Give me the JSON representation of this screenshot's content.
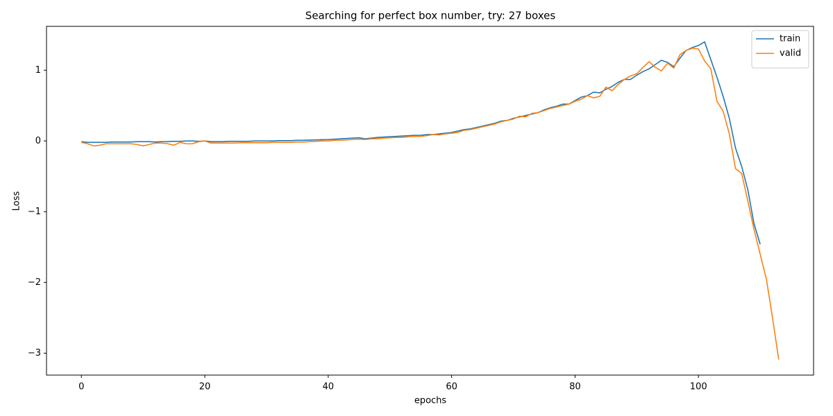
{
  "chart_data": {
    "type": "line",
    "title": "Searching for perfect box number, try: 27 boxes",
    "x_label": "epochs",
    "y_label": "Loss",
    "x": [
      0,
      1,
      2,
      3,
      4,
      5,
      6,
      7,
      8,
      9,
      10,
      11,
      12,
      13,
      14,
      15,
      16,
      17,
      18,
      19,
      20,
      21,
      22,
      23,
      24,
      25,
      26,
      27,
      28,
      29,
      30,
      31,
      32,
      33,
      34,
      35,
      36,
      37,
      38,
      39,
      40,
      41,
      42,
      43,
      44,
      45,
      46,
      47,
      48,
      49,
      50,
      51,
      52,
      53,
      54,
      55,
      56,
      57,
      58,
      59,
      60,
      61,
      62,
      63,
      64,
      65,
      66,
      67,
      68,
      69,
      70,
      71,
      72,
      73,
      74,
      75,
      76,
      77,
      78,
      79,
      80,
      81,
      82,
      83,
      84,
      85,
      86,
      87,
      88,
      89,
      90,
      91,
      92,
      93,
      94,
      95,
      96,
      97,
      98,
      99,
      100,
      101,
      102,
      103,
      104,
      105,
      106,
      107,
      108,
      109,
      110,
      111,
      112,
      113
    ],
    "series": [
      {
        "name": "train",
        "color": "#1f77b4",
        "values": [
          -0.01,
          -0.02,
          -0.02,
          -0.02,
          -0.02,
          -0.015,
          -0.015,
          -0.015,
          -0.015,
          -0.01,
          -0.01,
          -0.01,
          -0.015,
          -0.01,
          -0.01,
          -0.005,
          -0.005,
          0,
          0,
          -0.005,
          0,
          -0.01,
          -0.01,
          -0.01,
          -0.005,
          -0.005,
          -0.005,
          -0.005,
          0,
          0,
          0,
          0,
          0.005,
          0.005,
          0.005,
          0.01,
          0.01,
          0.012,
          0.015,
          0.018,
          0.02,
          0.025,
          0.03,
          0.035,
          0.04,
          0.045,
          0.03,
          0.04,
          0.05,
          0.055,
          0.06,
          0.065,
          0.07,
          0.075,
          0.08,
          0.08,
          0.09,
          0.09,
          0.1,
          0.11,
          0.12,
          0.14,
          0.16,
          0.17,
          0.19,
          0.21,
          0.23,
          0.25,
          0.28,
          0.29,
          0.32,
          0.34,
          0.36,
          0.38,
          0.4,
          0.44,
          0.47,
          0.49,
          0.52,
          0.52,
          0.57,
          0.62,
          0.64,
          0.69,
          0.68,
          0.73,
          0.77,
          0.83,
          0.87,
          0.87,
          0.93,
          0.98,
          1.02,
          1.08,
          1.14,
          1.11,
          1.05,
          1.17,
          1.28,
          1.32,
          1.35,
          1.4,
          1.15,
          0.9,
          0.63,
          0.32,
          -0.1,
          -0.36,
          -0.69,
          -1.17,
          -1.46,
          null,
          null,
          null
        ]
      },
      {
        "name": "valid",
        "color": "#ff7f0e",
        "values": [
          -0.02,
          -0.04,
          -0.07,
          -0.06,
          -0.04,
          -0.04,
          -0.04,
          -0.04,
          -0.04,
          -0.05,
          -0.07,
          -0.05,
          -0.03,
          -0.03,
          -0.04,
          -0.06,
          -0.02,
          -0.04,
          -0.04,
          -0.01,
          0,
          -0.03,
          -0.03,
          -0.03,
          -0.03,
          -0.03,
          -0.025,
          -0.025,
          -0.025,
          -0.025,
          -0.025,
          -0.02,
          -0.02,
          -0.02,
          -0.02,
          -0.015,
          -0.015,
          -0.01,
          -0.005,
          0,
          0,
          0.01,
          0.01,
          0.015,
          0.02,
          0.025,
          0.02,
          0.03,
          0.03,
          0.04,
          0.045,
          0.05,
          0.05,
          0.06,
          0.065,
          0.065,
          0.075,
          0.09,
          0.085,
          0.1,
          0.11,
          0.12,
          0.15,
          0.16,
          0.18,
          0.2,
          0.22,
          0.24,
          0.27,
          0.29,
          0.31,
          0.35,
          0.34,
          0.39,
          0.4,
          0.43,
          0.46,
          0.48,
          0.5,
          0.52,
          0.56,
          0.59,
          0.64,
          0.61,
          0.63,
          0.76,
          0.71,
          0.8,
          0.87,
          0.92,
          0.95,
          1.04,
          1.12,
          1.04,
          0.99,
          1.1,
          1.03,
          1.22,
          1.28,
          1.31,
          1.3,
          1.13,
          1.02,
          0.56,
          0.42,
          0.1,
          -0.39,
          -0.46,
          -0.85,
          -1.25,
          -1.6,
          -1.95,
          -2.5,
          -3.09
        ]
      }
    ],
    "xlim": [
      -5.65,
      118.65
    ],
    "ylim": [
      -3.31,
      1.62
    ],
    "xticks": [
      0,
      20,
      40,
      60,
      80,
      100
    ],
    "yticks": [
      {
        "value": -3,
        "label": "−3"
      },
      {
        "value": -2,
        "label": "−2"
      },
      {
        "value": -1,
        "label": "−1"
      },
      0,
      1
    ],
    "legend": "upper right",
    "grid": false
  }
}
